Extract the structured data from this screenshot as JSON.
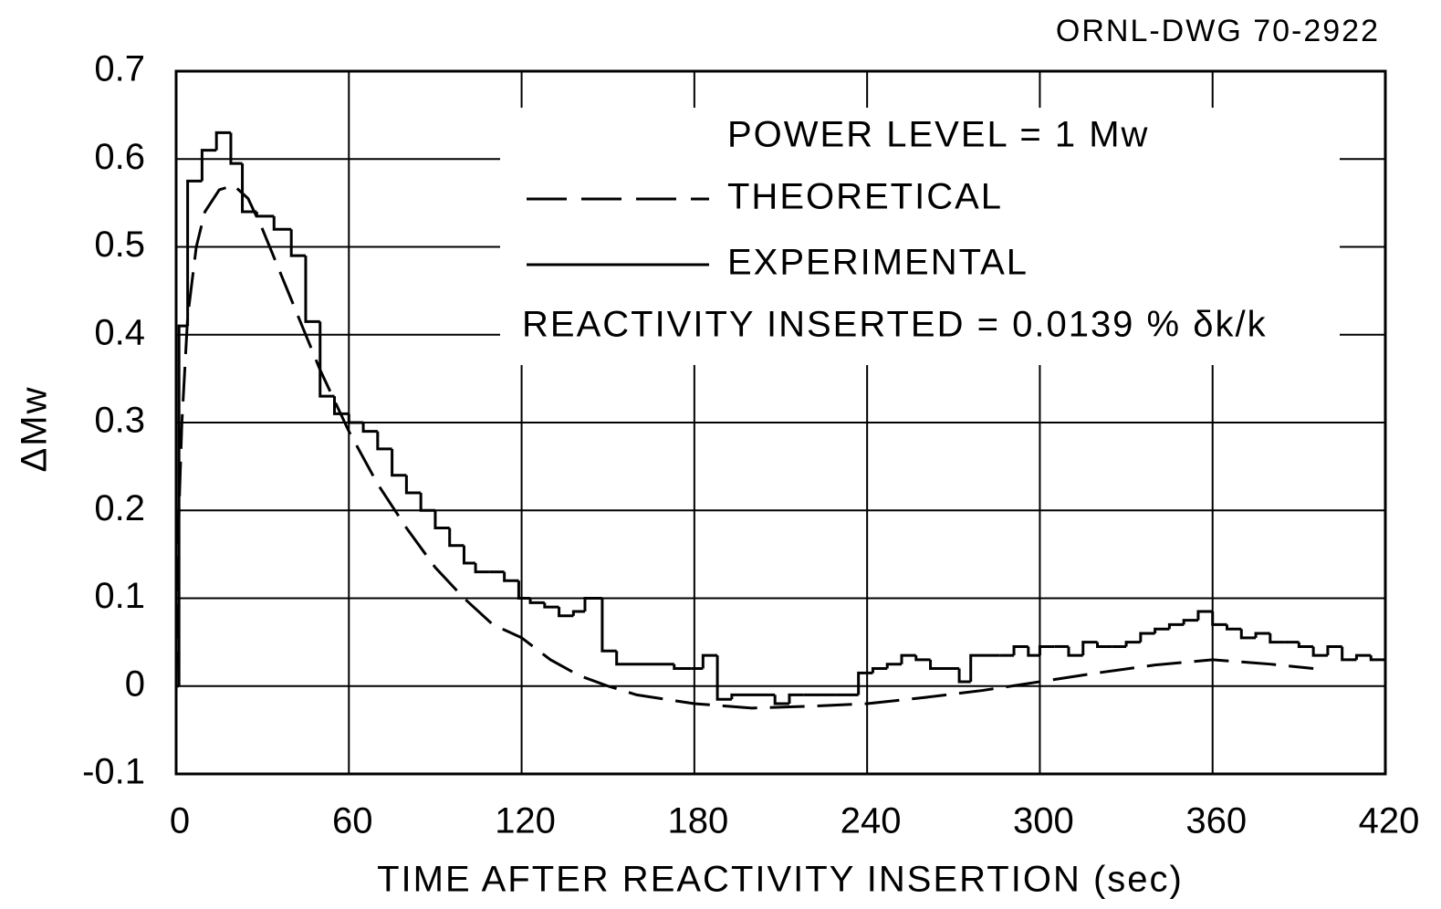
{
  "chart_data": {
    "type": "line",
    "drawing_number": "ORNL-DWG 70-2922",
    "xlabel": "TIME AFTER REACTIVITY INSERTION (sec)",
    "ylabel": "ΔMw",
    "annotations": [
      "POWER LEVEL = 1 Mw",
      "REACTIVITY INSERTED = 0.0139 % δk/k"
    ],
    "xlim": [
      0,
      420
    ],
    "xticks": [
      0,
      60,
      120,
      180,
      240,
      300,
      360,
      420
    ],
    "ylim": [
      -0.1,
      0.7
    ],
    "yticks": [
      -0.1,
      0,
      0.1,
      0.2,
      0.3,
      0.4,
      0.5,
      0.6,
      0.7
    ],
    "grid": true,
    "series": [
      {
        "name": "THEORETICAL",
        "color": "#000000",
        "style": "dashed",
        "x": [
          0,
          1,
          2,
          4,
          7,
          10,
          15,
          20,
          25,
          30,
          40,
          50,
          60,
          70,
          80,
          90,
          100,
          110,
          120,
          130,
          140,
          150,
          160,
          180,
          200,
          220,
          240,
          260,
          280,
          300,
          320,
          340,
          360,
          380,
          395
        ],
        "values": [
          0,
          0.2,
          0.3,
          0.42,
          0.5,
          0.54,
          0.565,
          0.57,
          0.555,
          0.52,
          0.44,
          0.36,
          0.29,
          0.23,
          0.18,
          0.135,
          0.1,
          0.07,
          0.055,
          0.03,
          0.012,
          0,
          -0.01,
          -0.02,
          -0.025,
          -0.023,
          -0.02,
          -0.013,
          -0.005,
          0.005,
          0.015,
          0.024,
          0.03,
          0.025,
          0.02
        ]
      },
      {
        "name": "EXPERIMENTAL",
        "color": "#000000",
        "style": "step",
        "x": [
          0,
          1,
          4,
          9,
          14,
          19,
          23,
          28,
          34,
          40,
          45,
          50,
          55,
          60,
          65,
          70,
          75,
          80,
          85,
          90,
          95,
          100,
          104,
          109,
          114,
          119,
          123,
          128,
          133,
          138,
          142,
          148,
          153,
          173,
          179,
          183,
          188,
          193,
          208,
          213,
          218,
          229,
          237,
          242,
          247,
          252,
          257,
          262,
          272,
          276,
          281,
          286,
          291,
          296,
          300,
          305,
          310,
          315,
          320,
          325,
          330,
          335,
          340,
          345,
          350,
          355,
          360,
          365,
          370,
          375,
          380,
          385,
          390,
          395,
          400,
          405,
          410,
          415
        ],
        "values": [
          0,
          0.41,
          0.575,
          0.61,
          0.63,
          0.595,
          0.54,
          0.535,
          0.52,
          0.49,
          0.415,
          0.33,
          0.31,
          0.3,
          0.29,
          0.27,
          0.24,
          0.22,
          0.2,
          0.18,
          0.16,
          0.14,
          0.13,
          0.13,
          0.12,
          0.1,
          0.095,
          0.09,
          0.08,
          0.085,
          0.1,
          0.04,
          0.025,
          0.02,
          0.02,
          0.035,
          -0.015,
          -0.01,
          -0.02,
          -0.01,
          -0.01,
          -0.01,
          0.015,
          0.02,
          0.025,
          0.035,
          0.03,
          0.02,
          0.005,
          0.035,
          0.035,
          0.035,
          0.045,
          0.035,
          0.045,
          0.045,
          0.035,
          0.05,
          0.045,
          0.045,
          0.05,
          0.06,
          0.065,
          0.07,
          0.075,
          0.085,
          0.07,
          0.065,
          0.055,
          0.06,
          0.05,
          0.05,
          0.045,
          0.035,
          0.045,
          0.03,
          0.035,
          0.03
        ]
      }
    ]
  }
}
